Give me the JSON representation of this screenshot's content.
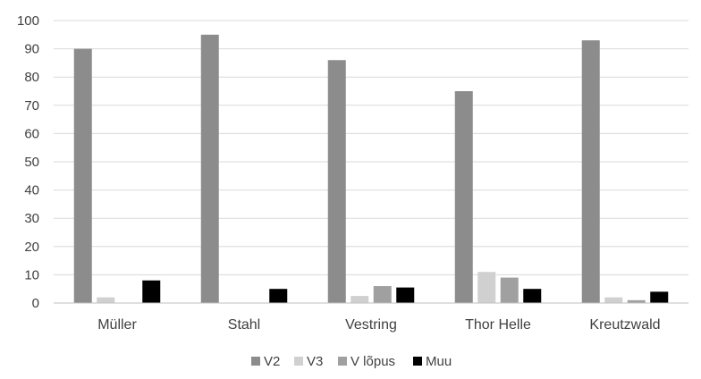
{
  "chart_data": {
    "type": "bar",
    "categories": [
      "Müller",
      "Stahl",
      "Vestring",
      "Thor Helle",
      "Kreutzwald"
    ],
    "series": [
      {
        "name": "V2",
        "color": "#8c8c8c",
        "values": [
          90,
          95,
          86,
          75,
          93
        ]
      },
      {
        "name": "V3",
        "color": "#d0d0d0",
        "values": [
          2,
          0,
          2.5,
          11,
          2
        ]
      },
      {
        "name": "V lõpus",
        "color": "#a0a0a0",
        "values": [
          0,
          0,
          6,
          9,
          1
        ]
      },
      {
        "name": "Muu",
        "color": "#000000",
        "values": [
          8,
          5,
          5.5,
          5,
          4
        ]
      }
    ],
    "ylim": [
      0,
      100
    ],
    "yticks": [
      0,
      10,
      20,
      30,
      40,
      50,
      60,
      70,
      80,
      90,
      100
    ],
    "grid": true,
    "legend": "bottom"
  }
}
